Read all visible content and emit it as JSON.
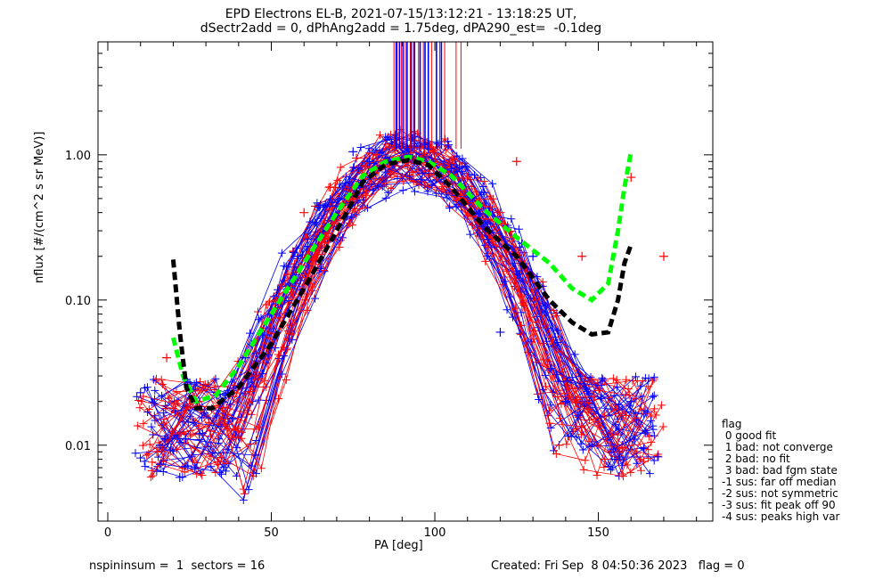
{
  "title_line1": "EPD Electrons EL-B, 2021-07-15/13:12:21 - 13:18:25 UT,",
  "title_line2": "dSectr2add = 0, dPhAng2add = 1.75deg, dPA290_est=  -0.1deg",
  "footer": {
    "left": "nspininsum =  1  sectors = 16",
    "right": "Created: Fri Sep  8 04:50:36 2023   flag = 0"
  },
  "legend": {
    "title": "flag",
    "items": [
      " 0 good fit",
      " 1 bad: not converge",
      " 2 bad: no fit",
      " 3 bad: bad fgm state",
      "-1 sus: far off median",
      "-2 sus: not symmetric",
      "-3 sus: fit peak off 90",
      "-4 sus: peaks high var"
    ]
  },
  "colors": {
    "red": "#ff0000",
    "blue": "#0000ff",
    "green": "#00ff00",
    "black": "#000000"
  },
  "chart_data": {
    "type": "line",
    "xlabel": "PA [deg]",
    "ylabel": "nflux [#/(cm^2 s sr MeV)]",
    "xlim": [
      -3,
      185
    ],
    "ylim": [
      0.003,
      6
    ],
    "yscale": "log",
    "x_ticks": [
      0,
      50,
      100,
      150
    ],
    "y_ticks": [
      0.01,
      0.1,
      1.0
    ],
    "y_tick_labels": [
      "0.01",
      "0.10",
      "1.00"
    ],
    "grid": false,
    "series": [
      {
        "color": "green",
        "style": "dashed-thick",
        "x": [
          20,
          23,
          27,
          33,
          40,
          50,
          60,
          70,
          78,
          85,
          92,
          98,
          105,
          115,
          125,
          135,
          142,
          148,
          153,
          156,
          158,
          160
        ],
        "y": [
          0.055,
          0.03,
          0.02,
          0.022,
          0.035,
          0.08,
          0.18,
          0.4,
          0.72,
          0.9,
          0.97,
          0.9,
          0.72,
          0.42,
          0.27,
          0.18,
          0.12,
          0.1,
          0.13,
          0.3,
          0.6,
          1.05
        ]
      },
      {
        "color": "black",
        "style": "dashed-thick",
        "x": [
          20,
          22,
          24,
          27,
          32,
          40,
          50,
          60,
          70,
          78,
          85,
          92,
          98,
          105,
          115,
          125,
          135,
          142,
          148,
          153,
          156,
          158,
          160
        ],
        "y": [
          0.19,
          0.06,
          0.025,
          0.018,
          0.018,
          0.025,
          0.05,
          0.12,
          0.3,
          0.65,
          0.86,
          0.92,
          0.85,
          0.6,
          0.32,
          0.2,
          0.1,
          0.07,
          0.058,
          0.06,
          0.1,
          0.18,
          0.24
        ]
      }
    ],
    "scatter_red_sample": {
      "x": [
        15,
        18,
        22,
        28,
        35,
        45,
        55,
        60,
        68,
        76,
        82,
        88,
        95,
        100,
        110,
        120,
        125,
        138,
        145,
        152,
        160,
        170
      ],
      "y": [
        0.009,
        0.04,
        0.012,
        0.02,
        0.015,
        0.03,
        0.15,
        0.4,
        0.6,
        0.95,
        1.0,
        0.9,
        0.95,
        0.85,
        0.7,
        0.4,
        0.9,
        0.01,
        0.2,
        0.008,
        0.7,
        0.2
      ]
    },
    "scatter_blue_sample": {
      "x": [
        10,
        16,
        22,
        28,
        35,
        42,
        50,
        58,
        65,
        75,
        80,
        85,
        92,
        98,
        105,
        115,
        120,
        130,
        140,
        148,
        155,
        160
      ],
      "y": [
        0.023,
        0.01,
        0.006,
        0.012,
        0.02,
        0.04,
        0.08,
        0.2,
        0.45,
        1.05,
        0.9,
        0.95,
        1.0,
        1.1,
        0.8,
        0.55,
        0.06,
        0.2,
        0.02,
        0.01,
        0.008,
        0.02
      ]
    },
    "vertical_marks": {
      "ymin": 1.1,
      "red_x": [
        87.5,
        88.5,
        89.8,
        91,
        92.5,
        93.5,
        95,
        96.5,
        99,
        101.5,
        103,
        106.5,
        108
      ],
      "blue_x": [
        88.2,
        89.2,
        90.3,
        91.5,
        92.8,
        93.8,
        95.5,
        97,
        98,
        100.5,
        102
      ]
    }
  }
}
